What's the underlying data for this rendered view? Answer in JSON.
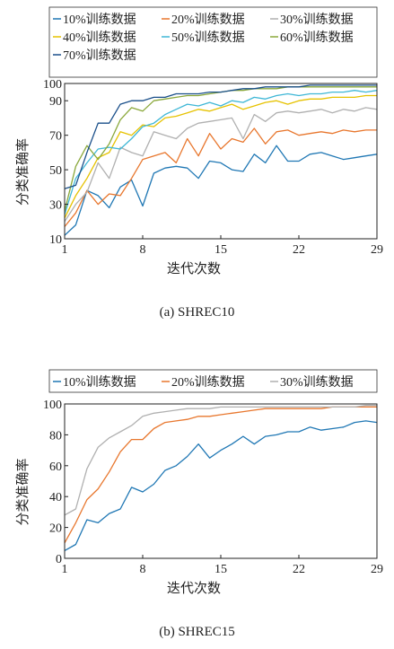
{
  "chart_data": [
    {
      "type": "line",
      "caption": "(a) SHREC10",
      "xlabel": "迭代次数",
      "ylabel": "分类准确率",
      "xlim": [
        1,
        29
      ],
      "ylim": [
        10,
        100
      ],
      "xticks": [
        1,
        8,
        15,
        22,
        29
      ],
      "yticks": [
        10,
        30,
        50,
        70,
        90,
        100
      ],
      "grid": false,
      "legend": "top",
      "x": [
        1,
        2,
        3,
        4,
        5,
        6,
        7,
        8,
        9,
        10,
        11,
        12,
        13,
        14,
        15,
        16,
        17,
        18,
        19,
        20,
        21,
        22,
        23,
        24,
        25,
        26,
        27,
        28,
        29
      ],
      "series": [
        {
          "name": "10%训练数据",
          "color": "#1f77b4",
          "values": [
            12,
            18,
            38,
            35,
            28,
            40,
            44,
            29,
            48,
            51,
            52,
            51,
            45,
            55,
            54,
            50,
            49,
            59,
            54,
            64,
            55,
            55,
            59,
            60,
            58,
            56,
            57,
            58,
            59
          ]
        },
        {
          "name": "20%训练数据",
          "color": "#e8772e",
          "values": [
            17,
            25,
            38,
            30,
            36,
            35,
            45,
            56,
            58,
            60,
            54,
            68,
            58,
            71,
            62,
            68,
            66,
            74,
            65,
            72,
            73,
            70,
            71,
            72,
            71,
            73,
            72,
            73,
            73
          ]
        },
        {
          "name": "30%训练数据",
          "color": "#b0b0b0",
          "values": [
            20,
            30,
            37,
            54,
            45,
            63,
            60,
            58,
            72,
            70,
            68,
            74,
            77,
            78,
            79,
            80,
            68,
            82,
            78,
            83,
            84,
            83,
            84,
            85,
            83,
            85,
            84,
            86,
            85
          ]
        },
        {
          "name": "40%训练数据",
          "color": "#e6c200",
          "values": [
            22,
            35,
            45,
            57,
            60,
            72,
            70,
            76,
            75,
            80,
            81,
            83,
            85,
            84,
            86,
            88,
            85,
            87,
            89,
            90,
            88,
            90,
            91,
            91,
            92,
            92,
            92,
            93,
            93
          ]
        },
        {
          "name": "50%训练数据",
          "color": "#3fb7d6",
          "values": [
            24,
            45,
            54,
            62,
            63,
            62,
            68,
            75,
            77,
            82,
            85,
            88,
            87,
            89,
            87,
            90,
            89,
            92,
            91,
            93,
            94,
            93,
            94,
            94,
            95,
            95,
            96,
            95,
            96
          ]
        },
        {
          "name": "60%训练数据",
          "color": "#8aa83b",
          "values": [
            26,
            52,
            64,
            56,
            65,
            79,
            86,
            84,
            90,
            91,
            92,
            93,
            93,
            94,
            95,
            96,
            96,
            97,
            97,
            97,
            98,
            98,
            98,
            98,
            98,
            98,
            98,
            98,
            98
          ]
        },
        {
          "name": "70%训练数据",
          "color": "#1a4f8a",
          "values": [
            39,
            41,
            60,
            77,
            77,
            88,
            90,
            90,
            92,
            92,
            94,
            94,
            94,
            95,
            95,
            96,
            97,
            97,
            98,
            98,
            98,
            98,
            99,
            99,
            99,
            99,
            99,
            99,
            99
          ]
        }
      ]
    },
    {
      "type": "line",
      "caption": "(b) SHREC15",
      "xlabel": "迭代次数",
      "ylabel": "分类准确率",
      "xlim": [
        1,
        29
      ],
      "ylim": [
        0,
        100
      ],
      "xticks": [
        1,
        8,
        15,
        22,
        29
      ],
      "yticks": [
        0,
        20,
        40,
        60,
        80,
        100
      ],
      "grid": false,
      "legend": "top",
      "x": [
        1,
        2,
        3,
        4,
        5,
        6,
        7,
        8,
        9,
        10,
        11,
        12,
        13,
        14,
        15,
        16,
        17,
        18,
        19,
        20,
        21,
        22,
        23,
        24,
        25,
        26,
        27,
        28,
        29
      ],
      "series": [
        {
          "name": "10%训练数据",
          "color": "#1f77b4",
          "values": [
            5,
            9,
            25,
            23,
            29,
            32,
            46,
            43,
            48,
            57,
            60,
            66,
            74,
            65,
            70,
            74,
            79,
            74,
            79,
            80,
            82,
            82,
            85,
            83,
            84,
            85,
            88,
            89,
            88
          ]
        },
        {
          "name": "20%训练数据",
          "color": "#e8772e",
          "values": [
            10,
            23,
            38,
            45,
            56,
            69,
            77,
            77,
            84,
            88,
            89,
            90,
            92,
            92,
            93,
            94,
            95,
            96,
            97,
            97,
            97,
            97,
            97,
            97,
            98,
            98,
            98,
            98,
            98
          ]
        },
        {
          "name": "30%训练数据",
          "color": "#b0b0b0",
          "values": [
            28,
            32,
            58,
            72,
            78,
            82,
            86,
            92,
            94,
            95,
            96,
            97,
            97,
            97,
            98,
            98,
            98,
            98,
            98,
            98,
            98,
            98,
            98,
            98,
            98,
            98,
            98,
            99,
            99
          ]
        }
      ]
    }
  ]
}
